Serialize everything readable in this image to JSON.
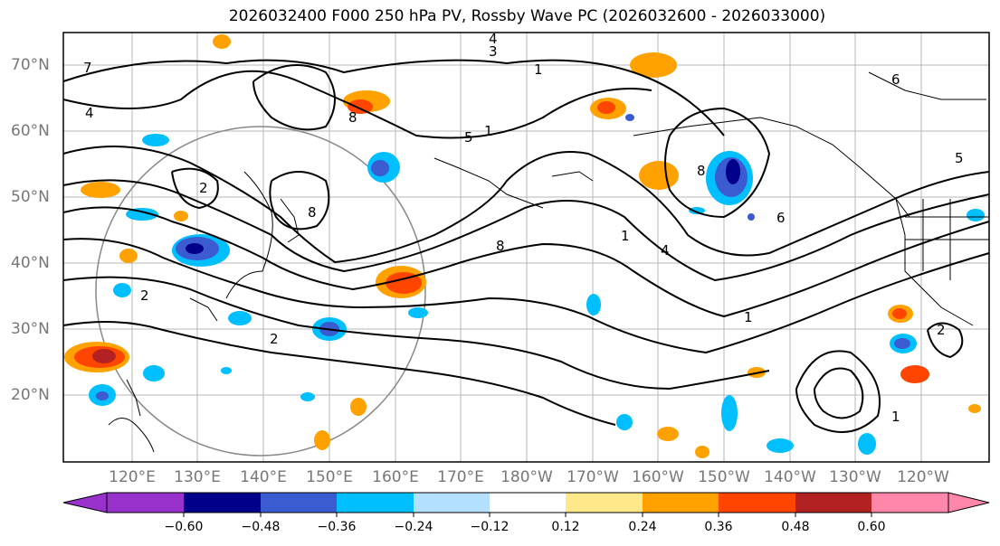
{
  "title": "2026032400 F000 250 hPa PV, Rossby Wave PC (2026032600 - 2026033000)",
  "lat_labels": [
    "70°N",
    "60°N",
    "50°N",
    "40°N",
    "30°N",
    "20°N"
  ],
  "lon_labels": [
    "120°E",
    "130°E",
    "140°E",
    "150°E",
    "160°E",
    "170°E",
    "180°W",
    "170°W",
    "160°W",
    "150°W",
    "140°W",
    "130°W",
    "120°W"
  ],
  "colorbar": {
    "ticks": [
      "−0.60",
      "−0.48",
      "−0.36",
      "−0.24",
      "−0.12",
      "0.12",
      "0.24",
      "0.36",
      "0.48",
      "0.60"
    ],
    "colors": [
      "#9932cc",
      "#00008b",
      "#3b5bd1",
      "#00bfff",
      "#b3e0ff",
      "#ffffff",
      "#ffe88a",
      "#ffa200",
      "#ff4500",
      "#b22222",
      "#ff88aa"
    ]
  },
  "contour_labels": [
    "1",
    "2",
    "3",
    "4",
    "5",
    "6",
    "7",
    "8"
  ]
}
